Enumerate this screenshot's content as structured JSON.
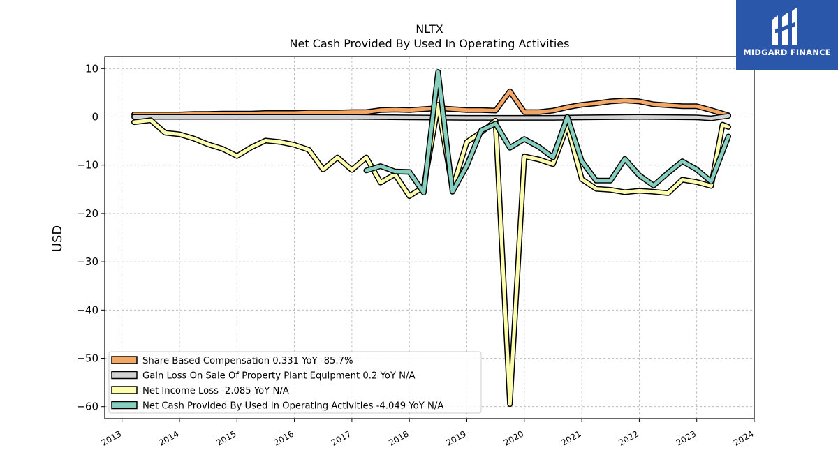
{
  "chart_data": {
    "type": "line",
    "title": "NLTX",
    "subtitle": "Net Cash Provided By Used In Operating Activities",
    "xlabel": "",
    "ylabel": "USD",
    "xlim": [
      2012.7,
      2024.0
    ],
    "ylim": [
      -62.5,
      12.5
    ],
    "x_ticks": [
      "2013",
      "2014",
      "2015",
      "2016",
      "2017",
      "2018",
      "2019",
      "2020",
      "2021",
      "2022",
      "2023",
      "2024"
    ],
    "y_ticks": [
      10,
      0,
      -10,
      -20,
      -30,
      -40,
      -50,
      -60
    ],
    "grid": true,
    "legend_position": "lower-left",
    "series": [
      {
        "name": "Share Based Compensation",
        "legend_label": "Share Based Compensation  0.331 YoY -85.7%",
        "color": "#f4a765",
        "x": [
          2013.21,
          2013.5,
          2013.75,
          2014.0,
          2014.25,
          2014.5,
          2014.75,
          2015.0,
          2015.25,
          2015.5,
          2015.75,
          2016.0,
          2016.25,
          2016.5,
          2016.75,
          2017.0,
          2017.25,
          2017.5,
          2017.75,
          2018.0,
          2018.25,
          2018.5,
          2018.75,
          2019.0,
          2019.25,
          2019.5,
          2019.75,
          2020.0,
          2020.25,
          2020.5,
          2020.75,
          2021.0,
          2021.25,
          2021.5,
          2021.75,
          2022.0,
          2022.25,
          2022.5,
          2022.75,
          2023.0,
          2023.25,
          2023.55
        ],
        "values": [
          0.5,
          0.5,
          0.5,
          0.5,
          0.6,
          0.6,
          0.7,
          0.7,
          0.7,
          0.8,
          0.8,
          0.8,
          0.9,
          0.9,
          0.9,
          1.0,
          1.0,
          1.4,
          1.5,
          1.4,
          1.6,
          1.8,
          1.6,
          1.4,
          1.4,
          1.3,
          5.3,
          1.0,
          1.0,
          1.3,
          2.0,
          2.5,
          2.8,
          3.2,
          3.4,
          3.2,
          2.6,
          2.4,
          2.2,
          2.2,
          1.4,
          0.331
        ]
      },
      {
        "name": "Gain Loss On Sale Of Property Plant Equipment",
        "legend_label": "Gain Loss On Sale Of Property Plant Equipment  0.2 YoY N/A",
        "color": "#d3d3d3",
        "x": [
          2013.21,
          2014.0,
          2015.0,
          2016.0,
          2017.0,
          2018.0,
          2019.0,
          2020.0,
          2020.5,
          2021.0,
          2022.0,
          2023.0,
          2023.25,
          2023.55
        ],
        "values": [
          0.0,
          0.0,
          0.0,
          0.0,
          0.0,
          -0.1,
          -0.2,
          -0.2,
          -0.2,
          -0.1,
          0.0,
          -0.1,
          -0.3,
          0.2
        ]
      },
      {
        "name": "Net Income Loss",
        "legend_label": "Net Income Loss  -2.085 YoY N/A",
        "color": "#fdfdb0",
        "x": [
          2013.21,
          2013.5,
          2013.75,
          2014.0,
          2014.25,
          2014.5,
          2014.75,
          2015.0,
          2015.25,
          2015.5,
          2015.75,
          2016.0,
          2016.25,
          2016.5,
          2016.75,
          2017.0,
          2017.25,
          2017.5,
          2017.75,
          2018.0,
          2018.25,
          2018.5,
          2018.75,
          2019.0,
          2019.25,
          2019.5,
          2019.75,
          2020.0,
          2020.25,
          2020.5,
          2020.75,
          2021.0,
          2021.25,
          2021.5,
          2021.75,
          2022.0,
          2022.25,
          2022.5,
          2022.75,
          2023.0,
          2023.25,
          2023.45,
          2023.55
        ],
        "values": [
          -1.1,
          -0.7,
          -3.3,
          -3.6,
          -4.5,
          -5.7,
          -6.6,
          -8.1,
          -6.3,
          -4.9,
          -5.2,
          -5.8,
          -6.8,
          -10.9,
          -8.4,
          -11.0,
          -8.4,
          -13.6,
          -11.9,
          -16.4,
          -14.5,
          2.5,
          -14.8,
          -5.2,
          -3.2,
          -0.8,
          -59.5,
          -8.2,
          -8.8,
          -9.8,
          -1.8,
          -12.9,
          -14.9,
          -15.1,
          -15.6,
          -15.3,
          -15.5,
          -15.8,
          -13.0,
          -13.5,
          -14.3,
          -1.6,
          -2.085
        ]
      },
      {
        "name": "Net Cash Provided By Used In Operating Activities",
        "legend_label": "Net Cash Provided By Used In Operating Activities  -4.049 YoY N/A",
        "color": "#86cfbf",
        "x": [
          2017.25,
          2017.5,
          2017.75,
          2018.0,
          2018.25,
          2018.5,
          2018.75,
          2019.0,
          2019.25,
          2019.5,
          2019.75,
          2020.0,
          2020.25,
          2020.5,
          2020.75,
          2021.0,
          2021.25,
          2021.5,
          2021.75,
          2022.0,
          2022.25,
          2022.5,
          2022.75,
          2023.0,
          2023.25,
          2023.55
        ],
        "values": [
          -11.1,
          -10.2,
          -11.3,
          -11.4,
          -15.7,
          9.3,
          -15.5,
          -10.1,
          -2.8,
          -1.4,
          -6.4,
          -4.6,
          -6.2,
          -8.4,
          0.0,
          -9.2,
          -13.2,
          -13.2,
          -8.7,
          -12.1,
          -14.2,
          -11.6,
          -9.2,
          -10.9,
          -13.4,
          -4.049
        ]
      }
    ]
  },
  "logo": {
    "text": "MIDGARD FINANCE"
  }
}
